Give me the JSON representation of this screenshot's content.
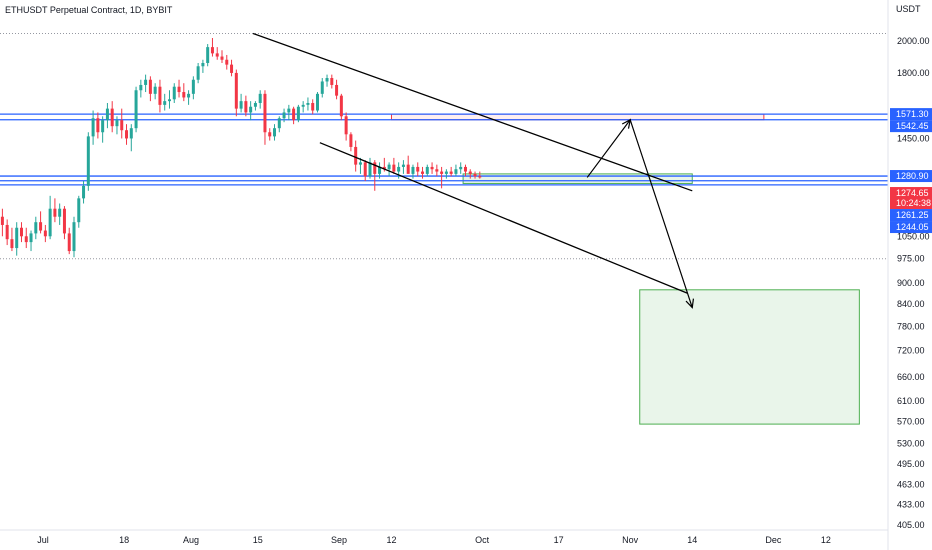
{
  "header": {
    "title": "ETHUSDT Perpetual Contract, 1D, BYBIT",
    "currency": "USDT"
  },
  "chart_data": {
    "type": "candlestick",
    "title": "ETHUSDT Perpetual Contract, 1D, BYBIT",
    "y_unit": "USDT",
    "y_scale": "log",
    "ylim": [
      405,
      2200
    ],
    "y_ticks": [
      2000,
      1800,
      1450,
      1050,
      975,
      900,
      840,
      780,
      720,
      660,
      610,
      570,
      530,
      495,
      463,
      433,
      405
    ],
    "y_tick_labels": [
      "2000.00",
      "1800.00",
      "1450.00",
      "1050.00",
      "975.00",
      "900.00",
      "840.00",
      "780.00",
      "720.00",
      "660.00",
      "610.00",
      "570.00",
      "530.00",
      "495.00",
      "463.00",
      "433.00",
      "405.00"
    ],
    "x_start": "2022-06-22",
    "x_end": "2022-12-25",
    "x_ticks": [
      {
        "date": "2022-07-01",
        "label": "Jul"
      },
      {
        "date": "2022-07-18",
        "label": "18"
      },
      {
        "date": "2022-08-01",
        "label": "Aug"
      },
      {
        "date": "2022-08-15",
        "label": "15"
      },
      {
        "date": "2022-09-01",
        "label": "Sep"
      },
      {
        "date": "2022-09-12",
        "label": "12"
      },
      {
        "date": "2022-10-01",
        "label": "Oct"
      },
      {
        "date": "2022-10-17",
        "label": "17"
      },
      {
        "date": "2022-11-01",
        "label": "Nov"
      },
      {
        "date": "2022-11-14",
        "label": "14"
      },
      {
        "date": "2022-12-01",
        "label": "Dec"
      },
      {
        "date": "2022-12-12",
        "label": "12"
      }
    ],
    "candles": {
      "start_date": "2022-06-22",
      "ohlc": [
        [
          1120,
          1150,
          1050,
          1090
        ],
        [
          1090,
          1110,
          1020,
          1040
        ],
        [
          1040,
          1080,
          1000,
          1010
        ],
        [
          1010,
          1100,
          985,
          1080
        ],
        [
          1080,
          1100,
          1030,
          1050
        ],
        [
          1050,
          1080,
          1010,
          1030
        ],
        [
          1030,
          1070,
          1000,
          1060
        ],
        [
          1060,
          1120,
          1040,
          1100
        ],
        [
          1100,
          1140,
          1060,
          1070
        ],
        [
          1070,
          1090,
          1030,
          1050
        ],
        [
          1050,
          1200,
          1040,
          1150
        ],
        [
          1150,
          1190,
          1100,
          1120
        ],
        [
          1120,
          1170,
          1090,
          1150
        ],
        [
          1150,
          1160,
          1040,
          1060
        ],
        [
          1060,
          1080,
          990,
          1000
        ],
        [
          1000,
          1120,
          980,
          1100
        ],
        [
          1100,
          1200,
          1080,
          1190
        ],
        [
          1190,
          1260,
          1170,
          1240
        ],
        [
          1240,
          1480,
          1220,
          1460
        ],
        [
          1460,
          1590,
          1420,
          1550
        ],
        [
          1550,
          1580,
          1450,
          1480
        ],
        [
          1480,
          1560,
          1430,
          1540
        ],
        [
          1540,
          1630,
          1500,
          1600
        ],
        [
          1600,
          1640,
          1480,
          1510
        ],
        [
          1510,
          1560,
          1470,
          1540
        ],
        [
          1540,
          1600,
          1450,
          1490
        ],
        [
          1490,
          1520,
          1420,
          1450
        ],
        [
          1450,
          1520,
          1390,
          1500
        ],
        [
          1500,
          1720,
          1480,
          1700
        ],
        [
          1700,
          1760,
          1660,
          1730
        ],
        [
          1730,
          1790,
          1690,
          1760
        ],
        [
          1760,
          1780,
          1640,
          1680
        ],
        [
          1680,
          1740,
          1650,
          1720
        ],
        [
          1720,
          1760,
          1580,
          1620
        ],
        [
          1620,
          1680,
          1590,
          1640
        ],
        [
          1640,
          1700,
          1600,
          1650
        ],
        [
          1650,
          1740,
          1630,
          1720
        ],
        [
          1720,
          1760,
          1660,
          1690
        ],
        [
          1690,
          1740,
          1640,
          1660
        ],
        [
          1660,
          1700,
          1620,
          1680
        ],
        [
          1680,
          1780,
          1650,
          1760
        ],
        [
          1760,
          1860,
          1740,
          1840
        ],
        [
          1840,
          1880,
          1800,
          1860
        ],
        [
          1860,
          1980,
          1840,
          1960
        ],
        [
          1960,
          2020,
          1900,
          1920
        ],
        [
          1920,
          1960,
          1880,
          1900
        ],
        [
          1900,
          1940,
          1860,
          1880
        ],
        [
          1880,
          1910,
          1820,
          1850
        ],
        [
          1850,
          1880,
          1780,
          1800
        ],
        [
          1800,
          1820,
          1560,
          1600
        ],
        [
          1600,
          1680,
          1580,
          1640
        ],
        [
          1640,
          1670,
          1560,
          1580
        ],
        [
          1580,
          1640,
          1540,
          1610
        ],
        [
          1610,
          1640,
          1590,
          1630
        ],
        [
          1630,
          1700,
          1600,
          1680
        ],
        [
          1680,
          1700,
          1420,
          1480
        ],
        [
          1480,
          1500,
          1440,
          1460
        ],
        [
          1460,
          1520,
          1440,
          1500
        ],
        [
          1500,
          1560,
          1480,
          1550
        ],
        [
          1550,
          1600,
          1530,
          1580
        ],
        [
          1580,
          1620,
          1540,
          1600
        ],
        [
          1600,
          1610,
          1520,
          1540
        ],
        [
          1540,
          1620,
          1530,
          1610
        ],
        [
          1610,
          1640,
          1580,
          1620
        ],
        [
          1620,
          1660,
          1590,
          1630
        ],
        [
          1630,
          1650,
          1570,
          1590
        ],
        [
          1590,
          1690,
          1580,
          1680
        ],
        [
          1680,
          1770,
          1660,
          1750
        ],
        [
          1750,
          1790,
          1720,
          1770
        ],
        [
          1770,
          1790,
          1710,
          1730
        ],
        [
          1730,
          1760,
          1650,
          1670
        ],
        [
          1670,
          1680,
          1540,
          1560
        ],
        [
          1560,
          1580,
          1440,
          1470
        ],
        [
          1470,
          1480,
          1390,
          1410
        ],
        [
          1410,
          1440,
          1300,
          1330
        ],
        [
          1330,
          1360,
          1290,
          1340
        ],
        [
          1340,
          1350,
          1260,
          1280
        ],
        [
          1280,
          1360,
          1270,
          1340
        ],
        [
          1340,
          1350,
          1220,
          1290
        ],
        [
          1290,
          1340,
          1270,
          1320
        ],
        [
          1320,
          1360,
          1300,
          1310
        ],
        [
          1310,
          1340,
          1280,
          1330
        ],
        [
          1330,
          1360,
          1290,
          1300
        ],
        [
          1300,
          1340,
          1270,
          1320
        ],
        [
          1320,
          1350,
          1290,
          1330
        ],
        [
          1330,
          1370,
          1300,
          1290
        ],
        [
          1290,
          1330,
          1270,
          1320
        ],
        [
          1320,
          1340,
          1280,
          1300
        ],
        [
          1300,
          1320,
          1270,
          1290
        ],
        [
          1290,
          1330,
          1280,
          1320
        ],
        [
          1320,
          1340,
          1290,
          1310
        ],
        [
          1310,
          1330,
          1280,
          1300
        ],
        [
          1300,
          1320,
          1230,
          1290
        ],
        [
          1290,
          1310,
          1270,
          1300
        ],
        [
          1300,
          1320,
          1280,
          1290
        ],
        [
          1290,
          1330,
          1280,
          1310
        ],
        [
          1310,
          1340,
          1290,
          1320
        ],
        [
          1320,
          1330,
          1280,
          1300
        ],
        [
          1300,
          1310,
          1270,
          1290
        ],
        [
          1290,
          1300,
          1270,
          1280
        ],
        [
          1280,
          1300,
          1270,
          1275
        ]
      ]
    },
    "annotations": {
      "support_resistance_lines": [
        1571.3,
        1542.45,
        1280.9,
        1261.25,
        1244.05
      ],
      "dotted_lines": [
        2050,
        975
      ],
      "descending_channel": {
        "upper": [
          {
            "date": "2022-08-14",
            "price": 2050
          },
          {
            "date": "2022-11-14",
            "price": 1220
          }
        ],
        "lower": [
          {
            "date": "2022-08-28",
            "price": 1430
          },
          {
            "date": "2022-11-13",
            "price": 870
          }
        ]
      },
      "target_zones": [
        {
          "type": "resistance",
          "color": "#f23645",
          "start": "2022-09-12",
          "end": "2022-11-29",
          "top": 1571.3,
          "bottom": 1542.45
        },
        {
          "type": "support",
          "color": "#4caf50",
          "start": "2022-09-27",
          "end": "2022-11-14",
          "top": 1290,
          "bottom": 1250
        },
        {
          "type": "target",
          "color": "#4caf50",
          "start": "2022-11-03",
          "end": "2022-12-19",
          "top": 880,
          "bottom": 565
        }
      ],
      "projection_path": [
        {
          "date": "2022-10-23",
          "price": 1275
        },
        {
          "date": "2022-11-01",
          "price": 1542
        },
        {
          "date": "2022-11-14",
          "price": 830
        }
      ]
    },
    "price_tags": [
      {
        "label": "1571.30",
        "value": 1571.3,
        "color": "#2962ff"
      },
      {
        "label": "1542.45",
        "value": 1542.45,
        "color": "#2962ff"
      },
      {
        "label": "1280.90",
        "value": 1280.9,
        "color": "#2962ff"
      },
      {
        "label": "1274.65",
        "value": 1274.65,
        "color": "#f23645",
        "sub": "10:24:38"
      },
      {
        "label": "1261.25",
        "value": 1261.25,
        "color": "#2962ff"
      },
      {
        "label": "1244.05",
        "value": 1244.05,
        "color": "#2962ff"
      }
    ],
    "colors": {
      "up": "#26a69a",
      "down": "#f23645",
      "line": "#2962ff",
      "drawing": "#000000"
    }
  }
}
